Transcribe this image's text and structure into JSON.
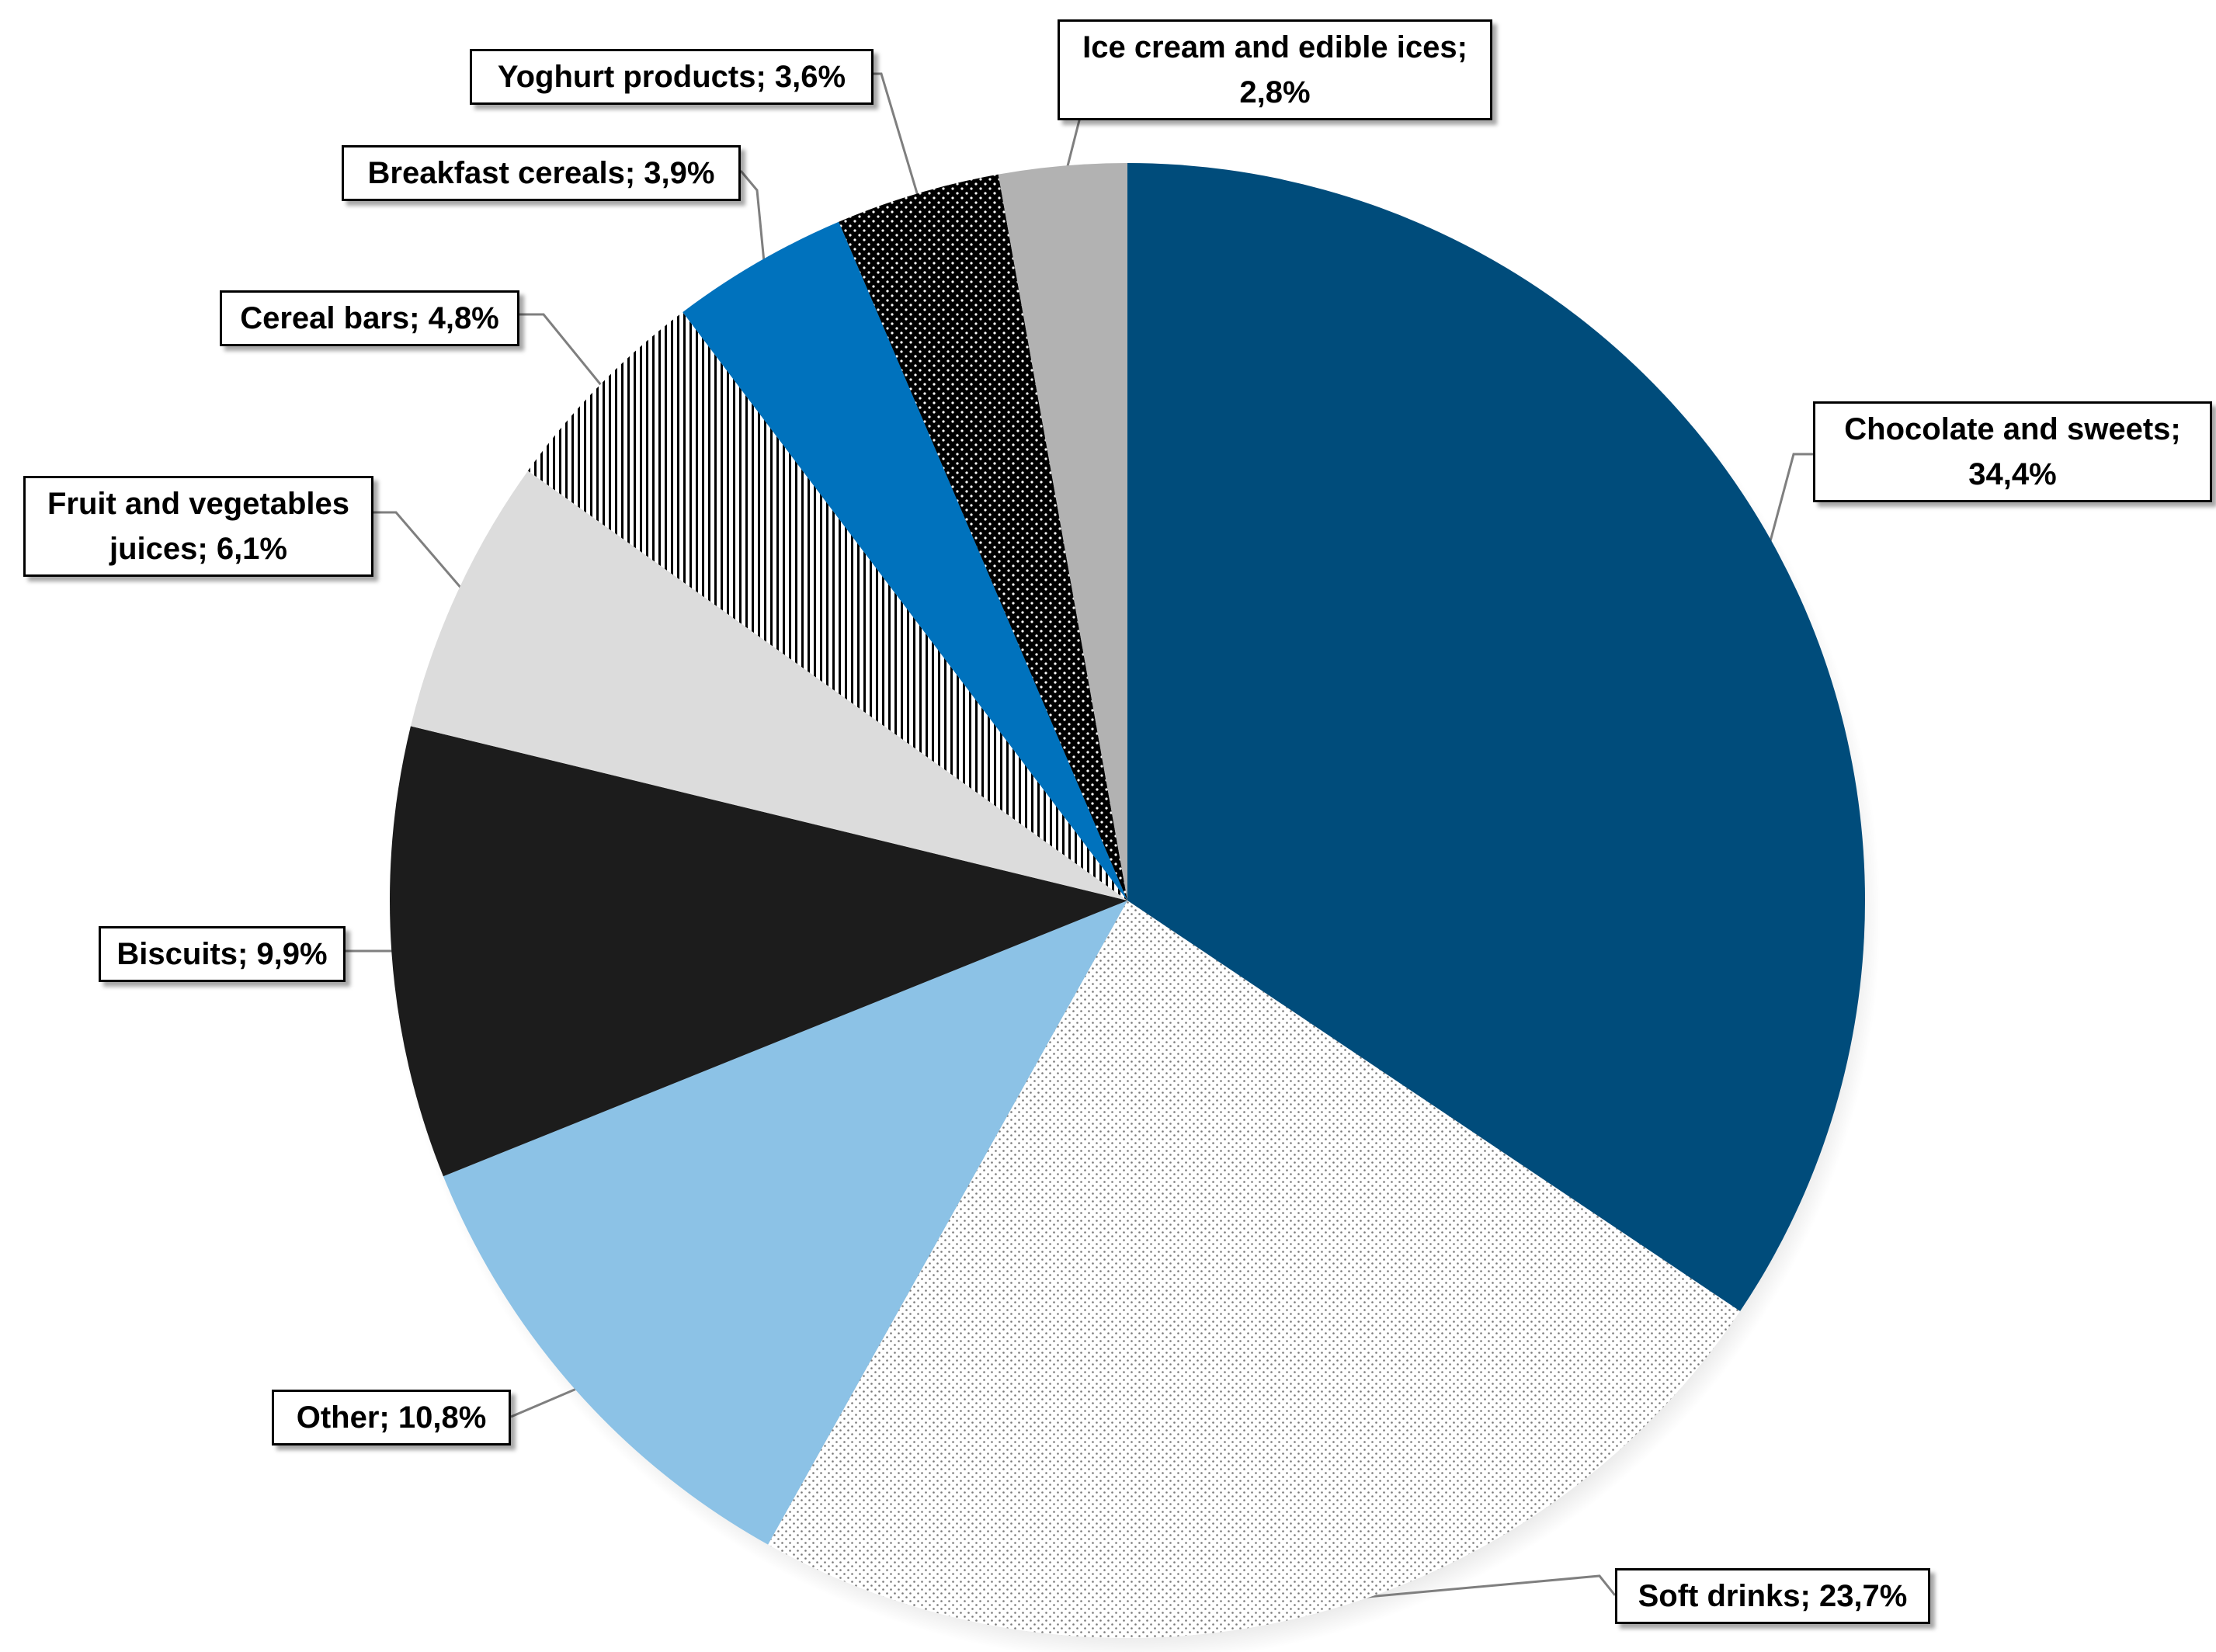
{
  "chart_data": {
    "type": "pie",
    "start_angle_deg": 0,
    "direction": "clockwise",
    "slices": [
      {
        "label": "Chocolate and sweets",
        "value": 34.4,
        "display": "34,4%",
        "fill": "#004c7b",
        "pattern": "solid"
      },
      {
        "label": "Soft drinks",
        "value": 23.7,
        "display": "23,7%",
        "fill": "#ffffff",
        "pattern": "dots",
        "pattern_color": "#7a7a7a"
      },
      {
        "label": "Other",
        "value": 10.8,
        "display": "10,8%",
        "fill": "#8cc2e6",
        "pattern": "solid"
      },
      {
        "label": "Biscuits",
        "value": 9.9,
        "display": "9,9%",
        "fill": "#1c1c1c",
        "pattern": "solid"
      },
      {
        "label": "Fruit and vegetables juices",
        "value": 6.1,
        "display": "6,1%",
        "fill": "#dcdcdc",
        "pattern": "solid"
      },
      {
        "label": "Cereal bars",
        "value": 4.8,
        "display": "4,8%",
        "fill": "#ffffff",
        "pattern": "vertical-stripes",
        "pattern_color": "#000000"
      },
      {
        "label": "Breakfast cereals",
        "value": 3.9,
        "display": "3,9%",
        "fill": "#0072bd",
        "pattern": "solid"
      },
      {
        "label": "Yoghurt products",
        "value": 3.6,
        "display": "3,6%",
        "fill": "#000000",
        "pattern": "dots",
        "pattern_color": "#ffffff"
      },
      {
        "label": "Ice cream and edible ices",
        "value": 2.8,
        "display": "2,8%",
        "fill": "#b2b2b2",
        "pattern": "solid"
      }
    ],
    "data_labels": [
      {
        "lines": [
          "Chocolate and sweets;",
          "34,4%"
        ]
      },
      {
        "lines": [
          "Soft drinks; 23,7%"
        ]
      },
      {
        "lines": [
          "Other; 10,8%"
        ]
      },
      {
        "lines": [
          "Biscuits;  9,9%"
        ]
      },
      {
        "lines": [
          "Fruit and vegetables",
          "juices; 6,1%"
        ]
      },
      {
        "lines": [
          "Cereal bars; 4,8%"
        ]
      },
      {
        "lines": [
          "Breakfast  cereals; 3,9%"
        ]
      },
      {
        "lines": [
          "Yoghurt products; 3,6%"
        ]
      },
      {
        "lines": [
          "Ice cream and edible ices;",
          "2,8%"
        ]
      }
    ],
    "leader_line_color": "#7f7f7f",
    "legend": "none"
  }
}
